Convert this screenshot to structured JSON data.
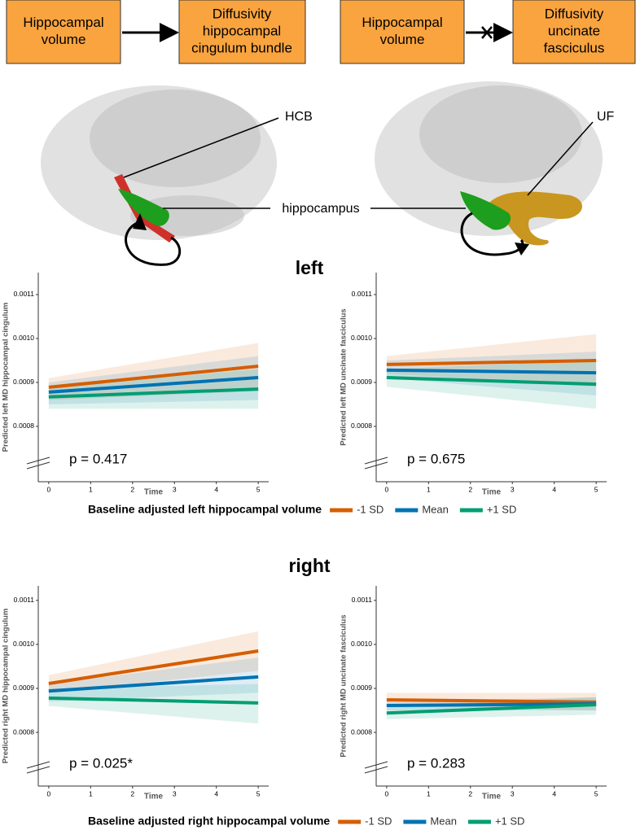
{
  "diagram": {
    "boxes": [
      [
        "Hippocampal",
        "volume"
      ],
      [
        "Diffusivity",
        "hippocampal",
        "cingulum bundle"
      ],
      [
        "Hippocampal",
        "volume"
      ],
      [
        "Diffusivity",
        "uncinate",
        "fasciculus"
      ]
    ],
    "labels": {
      "hcb": "HCB",
      "uf": "UF",
      "hippocampus": "hippocampus"
    },
    "sections": [
      "left",
      "right"
    ]
  },
  "chart_data": [
    {
      "type": "line",
      "y_label": "Predicted left MD hippocampal cingulum",
      "x_label": "Time",
      "annotation": "p = 0.417",
      "legend_title": "Baseline adjusted left hippocampal volume",
      "x": [
        0,
        5
      ],
      "xlim": [
        -0.25,
        5.25
      ],
      "ylim": [
        0.000674,
        0.00115
      ],
      "xticks": [
        0,
        1,
        2,
        3,
        4,
        5
      ],
      "yticks": [
        0.0008,
        0.0009,
        {
          "value": 0.001,
          "label": "0.0010"
        },
        0.0011
      ],
      "series": [
        {
          "name": "-1 SD",
          "color": "#d55e00",
          "values": [
            0.000889,
            0.000937
          ],
          "ci_lower": [
            0.00086,
            0.00088
          ],
          "ci_upper": [
            0.00091,
            0.00099
          ]
        },
        {
          "name": "Mean",
          "color": "#0072b2",
          "values": [
            0.000878,
            0.000911
          ],
          "ci_lower": [
            0.00085,
            0.00086
          ],
          "ci_upper": [
            0.0009,
            0.00096
          ]
        },
        {
          "name": "+1 SD",
          "color": "#009e73",
          "values": [
            0.000867,
            0.000885
          ],
          "ci_lower": [
            0.00084,
            0.00084
          ],
          "ci_upper": [
            0.00089,
            0.00093
          ]
        }
      ]
    },
    {
      "type": "line",
      "y_label": "Predicted left MD uncinate fasciculus",
      "x_label": "Time",
      "annotation": "p = 0.675",
      "x": [
        0,
        5
      ],
      "xlim": [
        -0.25,
        5.25
      ],
      "ylim": [
        0.000674,
        0.00115
      ],
      "xticks": [
        0,
        1,
        2,
        3,
        4,
        5
      ],
      "yticks": [
        0.0008,
        0.0009,
        {
          "value": 0.001,
          "label": "0.0010"
        },
        0.0011
      ],
      "series": [
        {
          "color": "#d55e00",
          "values": [
            0.000941,
            0.00095
          ],
          "ci_lower": [
            0.00092,
            0.00089
          ],
          "ci_upper": [
            0.00096,
            0.00101
          ]
        },
        {
          "color": "#0072b2",
          "values": [
            0.000928,
            0.000922
          ],
          "ci_lower": [
            0.00091,
            0.00087
          ],
          "ci_upper": [
            0.00095,
            0.00097
          ]
        },
        {
          "color": "#009e73",
          "values": [
            0.000911,
            0.000896
          ],
          "ci_lower": [
            0.00089,
            0.00084
          ],
          "ci_upper": [
            0.00093,
            0.00095
          ]
        }
      ]
    },
    {
      "type": "line",
      "y_label": "Predicted right MD hippocampal cingulum",
      "x_label": "Time",
      "annotation": "p = 0.025*",
      "legend_title": "Baseline adjusted right hippocampal volume",
      "x": [
        0,
        5
      ],
      "xlim": [
        -0.25,
        5.25
      ],
      "ylim": [
        0.000678,
        0.001133
      ],
      "xticks": [
        0,
        1,
        2,
        3,
        4,
        5
      ],
      "yticks": [
        0.0008,
        0.0009,
        {
          "value": 0.001,
          "label": "0.0010"
        },
        0.0011
      ],
      "series": [
        {
          "name": "-1 SD",
          "color": "#d55e00",
          "values": [
            0.000911,
            0.000985
          ],
          "ci_lower": [
            0.00089,
            0.00094
          ],
          "ci_upper": [
            0.00093,
            0.00103
          ]
        },
        {
          "name": "Mean",
          "color": "#0072b2",
          "values": [
            0.000894,
            0.000926
          ],
          "ci_lower": [
            0.00087,
            0.00089
          ],
          "ci_upper": [
            0.00091,
            0.00097
          ]
        },
        {
          "name": "+1 SD",
          "color": "#009e73",
          "values": [
            0.000878,
            0.000867
          ],
          "ci_lower": [
            0.00086,
            0.00082
          ],
          "ci_upper": [
            0.0009,
            0.00091
          ]
        }
      ]
    },
    {
      "type": "line",
      "y_label": "Predicted right MD uncinate fasciculus",
      "x_label": "Time",
      "annotation": "p = 0.283",
      "x": [
        0,
        5
      ],
      "xlim": [
        -0.25,
        5.25
      ],
      "ylim": [
        0.000678,
        0.001133
      ],
      "xticks": [
        0,
        1,
        2,
        3,
        4,
        5
      ],
      "yticks": [
        0.0008,
        0.0009,
        {
          "value": 0.001,
          "label": "0.0010"
        },
        0.0011
      ],
      "series": [
        {
          "color": "#d55e00",
          "values": [
            0.000874,
            0.000869
          ],
          "ci_lower": [
            0.00086,
            0.00085
          ],
          "ci_upper": [
            0.00089,
            0.00089
          ]
        },
        {
          "color": "#0072b2",
          "values": [
            0.000861,
            0.000865
          ],
          "ci_lower": [
            0.00085,
            0.00085
          ],
          "ci_upper": [
            0.00087,
            0.00088
          ]
        },
        {
          "color": "#009e73",
          "values": [
            0.000844,
            0.000863
          ],
          "ci_lower": [
            0.00083,
            0.00084
          ],
          "ci_upper": [
            0.00086,
            0.00088
          ]
        }
      ]
    }
  ]
}
